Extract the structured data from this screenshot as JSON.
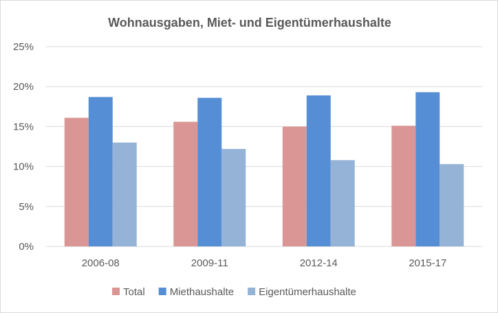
{
  "chart_data": {
    "type": "bar",
    "title": "Wohnausgaben, Miet- und Eigentümerhaushalte",
    "xlabel": "",
    "ylabel": "",
    "categories": [
      "2006-08",
      "2009-11",
      "2012-14",
      "2015-17"
    ],
    "series": [
      {
        "name": "Total",
        "color": "#da9694",
        "values": [
          16.1,
          15.6,
          15.0,
          15.1
        ]
      },
      {
        "name": "Miethaushalte",
        "color": "#558ed5",
        "values": [
          18.7,
          18.6,
          18.9,
          19.3
        ]
      },
      {
        "name": "Eigentümerhaushalte",
        "color": "#95b3d7",
        "values": [
          13.0,
          12.2,
          10.8,
          10.3
        ]
      }
    ],
    "ylim": [
      0,
      25
    ],
    "yticks": [
      0,
      5,
      10,
      15,
      20,
      25
    ],
    "ytick_labels": [
      "0%",
      "5%",
      "10%",
      "15%",
      "20%",
      "25%"
    ],
    "grid": true,
    "legend_position": "bottom"
  }
}
